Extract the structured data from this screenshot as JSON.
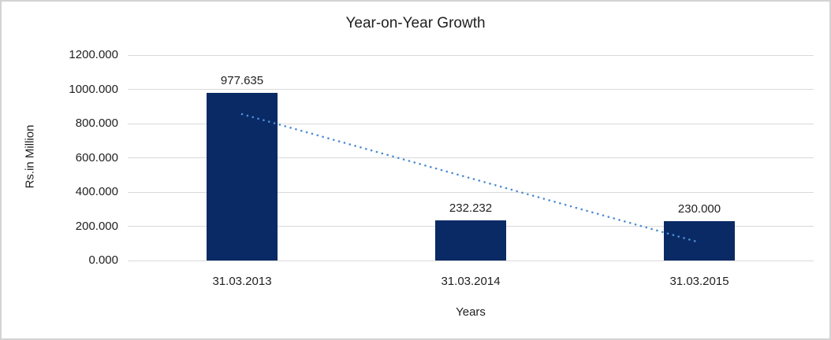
{
  "chart_data": {
    "type": "bar",
    "title": "Year-on-Year Growth",
    "categories": [
      "31.03.2013",
      "31.03.2014",
      "31.03.2015"
    ],
    "values": [
      977.635,
      232.232,
      230.0
    ],
    "value_labels": [
      "977.635",
      "232.232",
      "230.000"
    ],
    "xlabel": "Years",
    "ylabel": "Rs.in Million",
    "ylim": [
      0,
      1200
    ],
    "ytick_step": 200,
    "ytick_labels": [
      "0.000",
      "200.000",
      "400.000",
      "600.000",
      "800.000",
      "1000.000",
      "1200.000"
    ],
    "grid": true,
    "legend": "none",
    "trendline": {
      "type": "linear",
      "style": "dotted",
      "start_value": 855,
      "end_value": 106
    },
    "colors": {
      "bar": "#0A2A66",
      "trendline": "#4E8ED2",
      "gridline": "#D9D9D9",
      "text": "#1F1F1F",
      "border": "#D3D3D3"
    }
  }
}
